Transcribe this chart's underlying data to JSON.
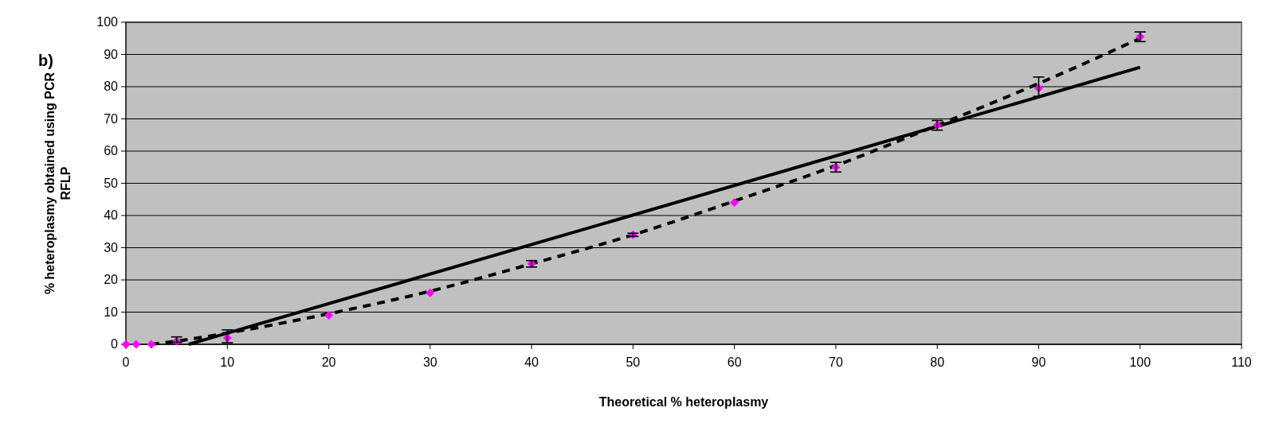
{
  "chart_data": {
    "type": "scatter",
    "xlabel": "Theoretical % heteroplasmy",
    "ylabel": "% heteroplasmy obtained using PCR RFLP",
    "annotations": [
      "b)"
    ],
    "x": [
      0,
      1,
      2.5,
      5,
      10,
      20,
      30,
      40,
      50,
      60,
      70,
      80,
      90,
      100
    ],
    "xlim": [
      0,
      110
    ],
    "xticks": [
      0,
      10,
      20,
      30,
      40,
      50,
      60,
      70,
      80,
      90,
      100,
      110
    ],
    "ylim": [
      0,
      100
    ],
    "yticks": [
      0,
      10,
      20,
      30,
      40,
      50,
      60,
      70,
      80,
      90,
      100
    ],
    "grid": "y",
    "series": [
      {
        "type": "line",
        "color": "#000000",
        "line_style": "dashed",
        "marker": "none",
        "x": [
          2.5,
          5,
          10,
          20,
          30,
          40,
          50,
          60,
          70,
          80,
          90,
          100
        ],
        "values": [
          0,
          1,
          3.5,
          9.5,
          16.5,
          25,
          34,
          44.5,
          55.5,
          68,
          81,
          95
        ]
      },
      {
        "type": "line",
        "color": "#000000",
        "line_style": "solid",
        "marker": "none",
        "x": [
          6.2,
          100
        ],
        "values": [
          0,
          86
        ]
      },
      {
        "color": "#ff00ff",
        "marker": "diamond",
        "values": [
          0,
          0,
          0,
          1,
          2,
          9,
          16,
          25,
          34,
          44,
          55,
          68,
          79.5,
          95.5
        ],
        "errors": [
          null,
          null,
          null,
          [
            0.6,
            2.3
          ],
          [
            0.5,
            4.5
          ],
          null,
          null,
          1,
          0.5,
          null,
          1.5,
          1.5,
          [
            77,
            83
          ],
          1.5
        ]
      }
    ]
  }
}
